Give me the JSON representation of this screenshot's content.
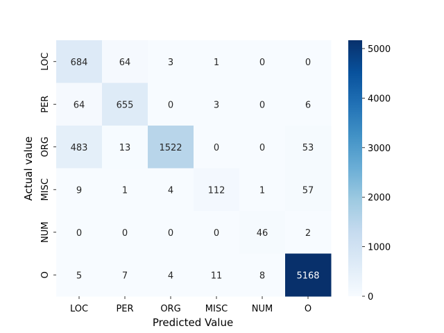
{
  "chart_data": {
    "type": "heatmap",
    "title": "",
    "xlabel": "Predicted Value",
    "ylabel": "Actual value",
    "x_categories": [
      "LOC",
      "PER",
      "ORG",
      "MISC",
      "NUM",
      "O"
    ],
    "y_categories": [
      "LOC",
      "PER",
      "ORG",
      "MISC",
      "NUM",
      "O"
    ],
    "values": [
      [
        684,
        64,
        3,
        1,
        0,
        0
      ],
      [
        64,
        655,
        0,
        3,
        0,
        6
      ],
      [
        483,
        13,
        1522,
        0,
        0,
        53
      ],
      [
        9,
        1,
        4,
        112,
        1,
        57
      ],
      [
        0,
        0,
        0,
        0,
        46,
        2
      ],
      [
        5,
        7,
        4,
        11,
        8,
        5168
      ]
    ],
    "colorbar": {
      "min": 0,
      "max": 5168,
      "ticks": [
        0,
        1000,
        2000,
        3000,
        4000,
        5000
      ]
    },
    "colormap": "Blues",
    "colors": {
      "low": "#f7fbff",
      "high": "#08306b"
    },
    "annotations": true,
    "grid": false
  }
}
